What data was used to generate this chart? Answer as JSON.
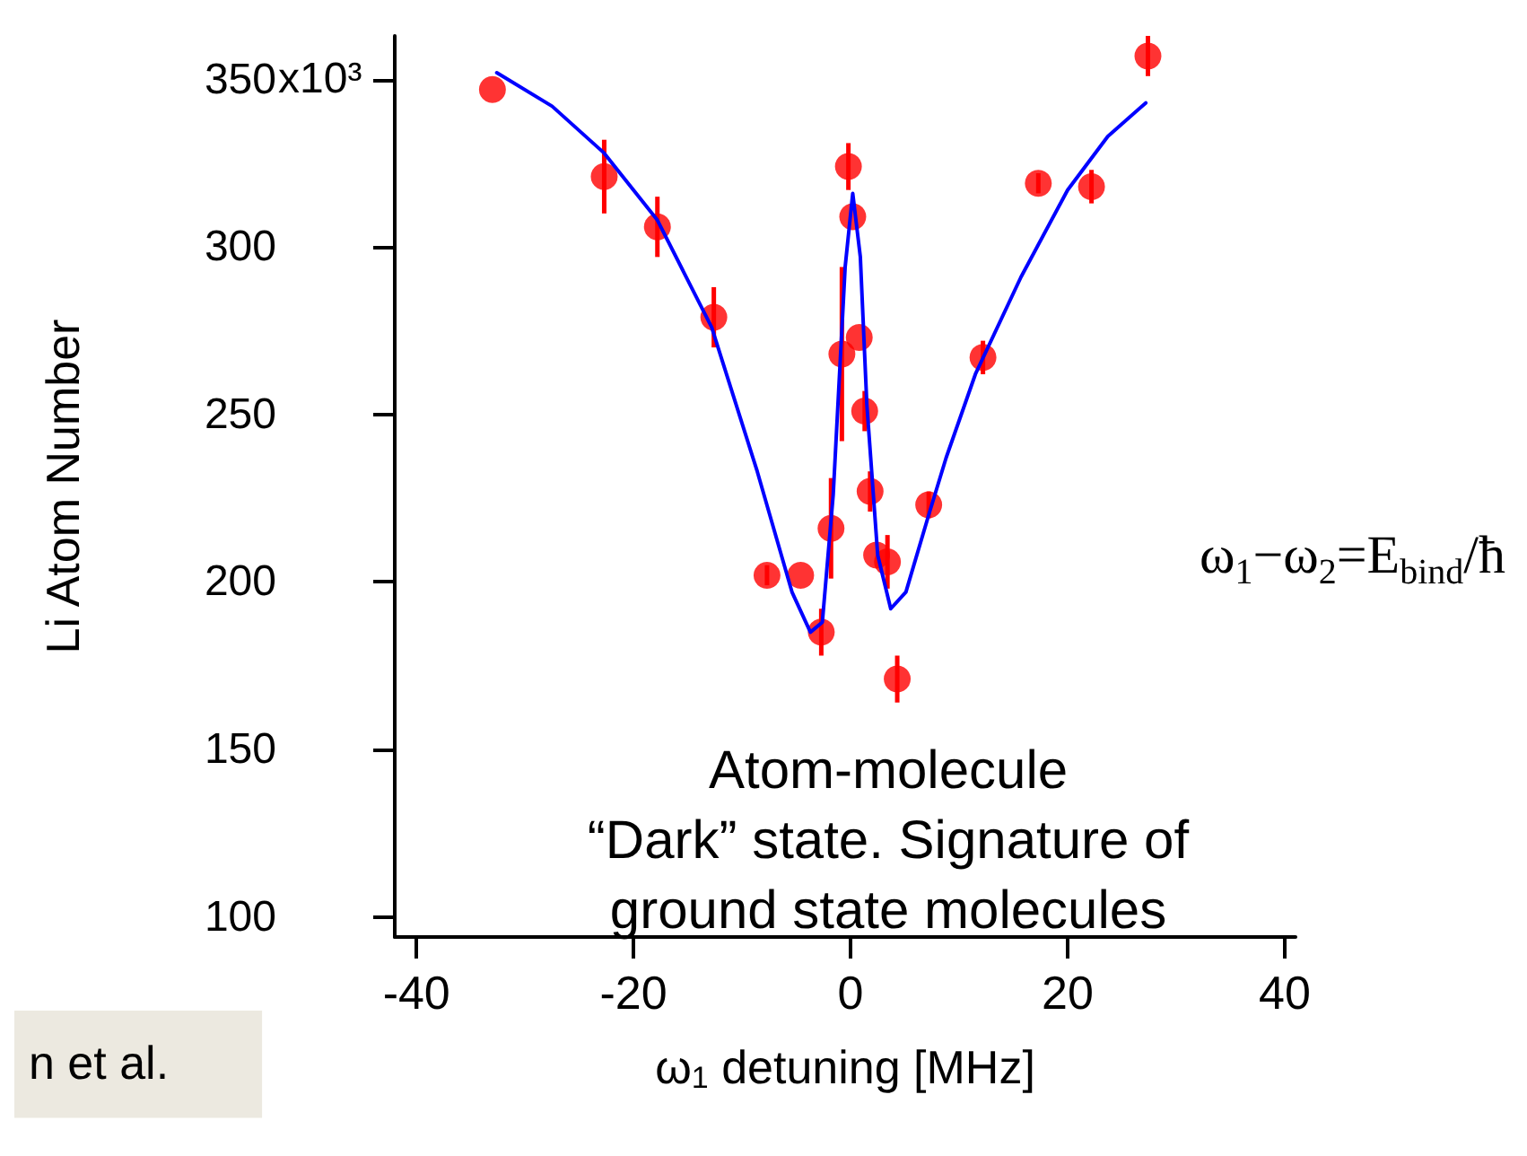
{
  "chart_data": {
    "type": "scatter",
    "xlabel": "ω$_{1}$ detuning [MHz]",
    "ylabel": "Li Atom Number",
    "xlim": [
      -42,
      41
    ],
    "xticks": [
      -40,
      -20,
      0,
      20,
      40
    ],
    "ylim": [
      94,
      363
    ],
    "yticks": [
      100,
      150,
      200,
      250,
      300,
      350
    ],
    "grid": false,
    "marker": "circle",
    "series": [
      {
        "color": "#ff0000",
        "x": [
          -33,
          -22.7,
          -17.8,
          -12.6,
          -7.7,
          -4.6,
          -2.7,
          -1.8,
          -0.2,
          0.2,
          -0.8,
          0.8,
          1.3,
          1.8,
          2.4,
          3.4,
          4.3,
          7.2,
          12.2,
          17.3,
          22.2,
          27.4
        ],
        "values": [
          347,
          321,
          306,
          279,
          202,
          202,
          185,
          216,
          324,
          309,
          268,
          273,
          251,
          227,
          208,
          206,
          171,
          223,
          267,
          319,
          318,
          357
        ],
        "errors": [
          null,
          11,
          9,
          9,
          3,
          null,
          7,
          15,
          7,
          null,
          26,
          null,
          6,
          6,
          null,
          8,
          7,
          4,
          5,
          3,
          5,
          6
        ]
      },
      {
        "type": "line",
        "color": "#0000ff",
        "marker": "none",
        "line_style": "solid",
        "x": [
          -32.6,
          -27.5,
          -22.7,
          -17.8,
          -12.8,
          -8.6,
          -5.4,
          -3.7,
          -2.6,
          -1.6,
          -0.5,
          0.2,
          0.9,
          1.5,
          2.5,
          3.7,
          5.1,
          7.2,
          8.8,
          11.5,
          15.7,
          20,
          23.7,
          27.2
        ],
        "values": [
          352,
          342,
          328,
          308,
          276,
          233,
          197,
          185,
          188,
          226,
          294,
          316,
          297,
          253,
          208,
          192,
          197,
          220,
          237,
          262,
          291,
          317,
          333,
          343
        ]
      }
    ],
    "annotations": [
      "ω$_{1}$−ω$_{2}$=E$_{bind}$/ħ",
      "Atom-molecule\n“Dark” state. Signature of\nground state molecules",
      "n et al.",
      "x10³"
    ]
  }
}
